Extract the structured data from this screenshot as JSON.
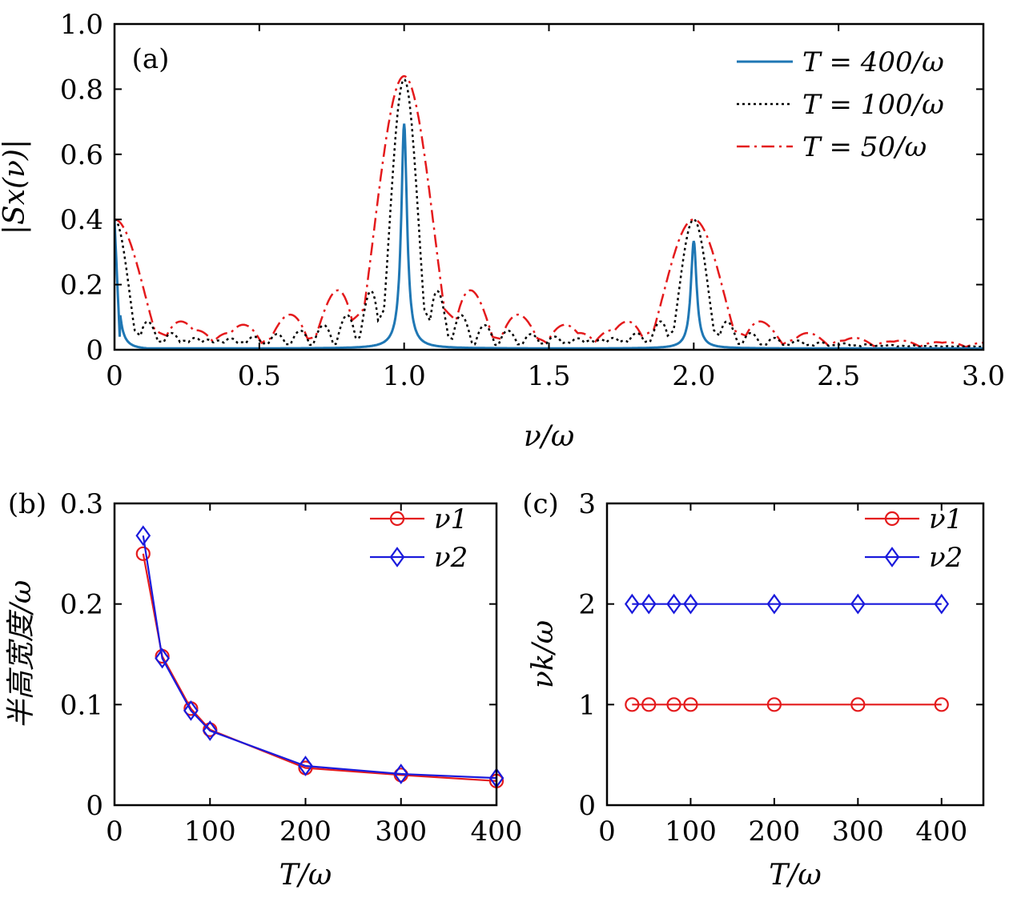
{
  "chart_data": [
    {
      "panel": "(a)",
      "type": "line",
      "xlabel": "ν/ω",
      "ylabel": "|Sx(ν)|",
      "xlim": [
        0,
        3.0
      ],
      "ylim": [
        0,
        1.0
      ],
      "xticks": [
        "0",
        "0.5",
        "1.0",
        "1.5",
        "2.0",
        "2.5",
        "3.0"
      ],
      "yticks": [
        "0",
        "0.2",
        "0.4",
        "0.6",
        "0.8",
        "1.0"
      ],
      "legend_position": "top-right",
      "series": [
        {
          "name": "T = 400/ω",
          "color": "#1f77b4",
          "style": "solid",
          "T": 400,
          "peaks": [
            0.4,
            0.69,
            0.33
          ]
        },
        {
          "name": "T = 100/ω",
          "color": "#000000",
          "style": "dotted",
          "T": 100,
          "peaks": [
            0.4,
            0.83,
            0.4
          ]
        },
        {
          "name": "T = 50/ω",
          "color": "#e41a1c",
          "style": "dashdot",
          "T": 50,
          "peaks": [
            0.4,
            0.84,
            0.4
          ]
        }
      ]
    },
    {
      "panel": "(b)",
      "type": "line",
      "xlabel": "T/ω",
      "ylabel": "半高宽度/ω",
      "xlim": [
        0,
        400
      ],
      "ylim": [
        0,
        0.3
      ],
      "xticks": [
        "0",
        "100",
        "200",
        "300",
        "400"
      ],
      "yticks": [
        "0",
        "0.1",
        "0.2",
        "0.3"
      ],
      "legend_position": "top-right",
      "x": [
        30,
        50,
        80,
        100,
        200,
        300,
        400
      ],
      "series": [
        {
          "name": "ν1",
          "color": "#e41a1c",
          "marker": "circle",
          "values": [
            0.25,
            0.148,
            0.096,
            0.075,
            0.037,
            0.03,
            0.024
          ]
        },
        {
          "name": "ν2",
          "color": "#1a1adc",
          "marker": "diamond",
          "values": [
            0.268,
            0.146,
            0.094,
            0.074,
            0.039,
            0.031,
            0.027
          ]
        }
      ]
    },
    {
      "panel": "(c)",
      "type": "line",
      "xlabel": "T/ω",
      "ylabel": "νk/ω",
      "xlim": [
        0,
        450
      ],
      "ylim": [
        0,
        3
      ],
      "xticks": [
        "0",
        "100",
        "200",
        "300",
        "400"
      ],
      "yticks": [
        "0",
        "1",
        "2",
        "3"
      ],
      "legend_position": "top-right",
      "x": [
        30,
        50,
        80,
        100,
        200,
        300,
        400
      ],
      "series": [
        {
          "name": "ν1",
          "color": "#e41a1c",
          "marker": "circle",
          "values": [
            1,
            1,
            1,
            1,
            1,
            1,
            1
          ]
        },
        {
          "name": "ν2",
          "color": "#1a1adc",
          "marker": "diamond",
          "values": [
            2,
            2,
            2,
            2,
            2,
            2,
            2
          ]
        }
      ]
    }
  ]
}
